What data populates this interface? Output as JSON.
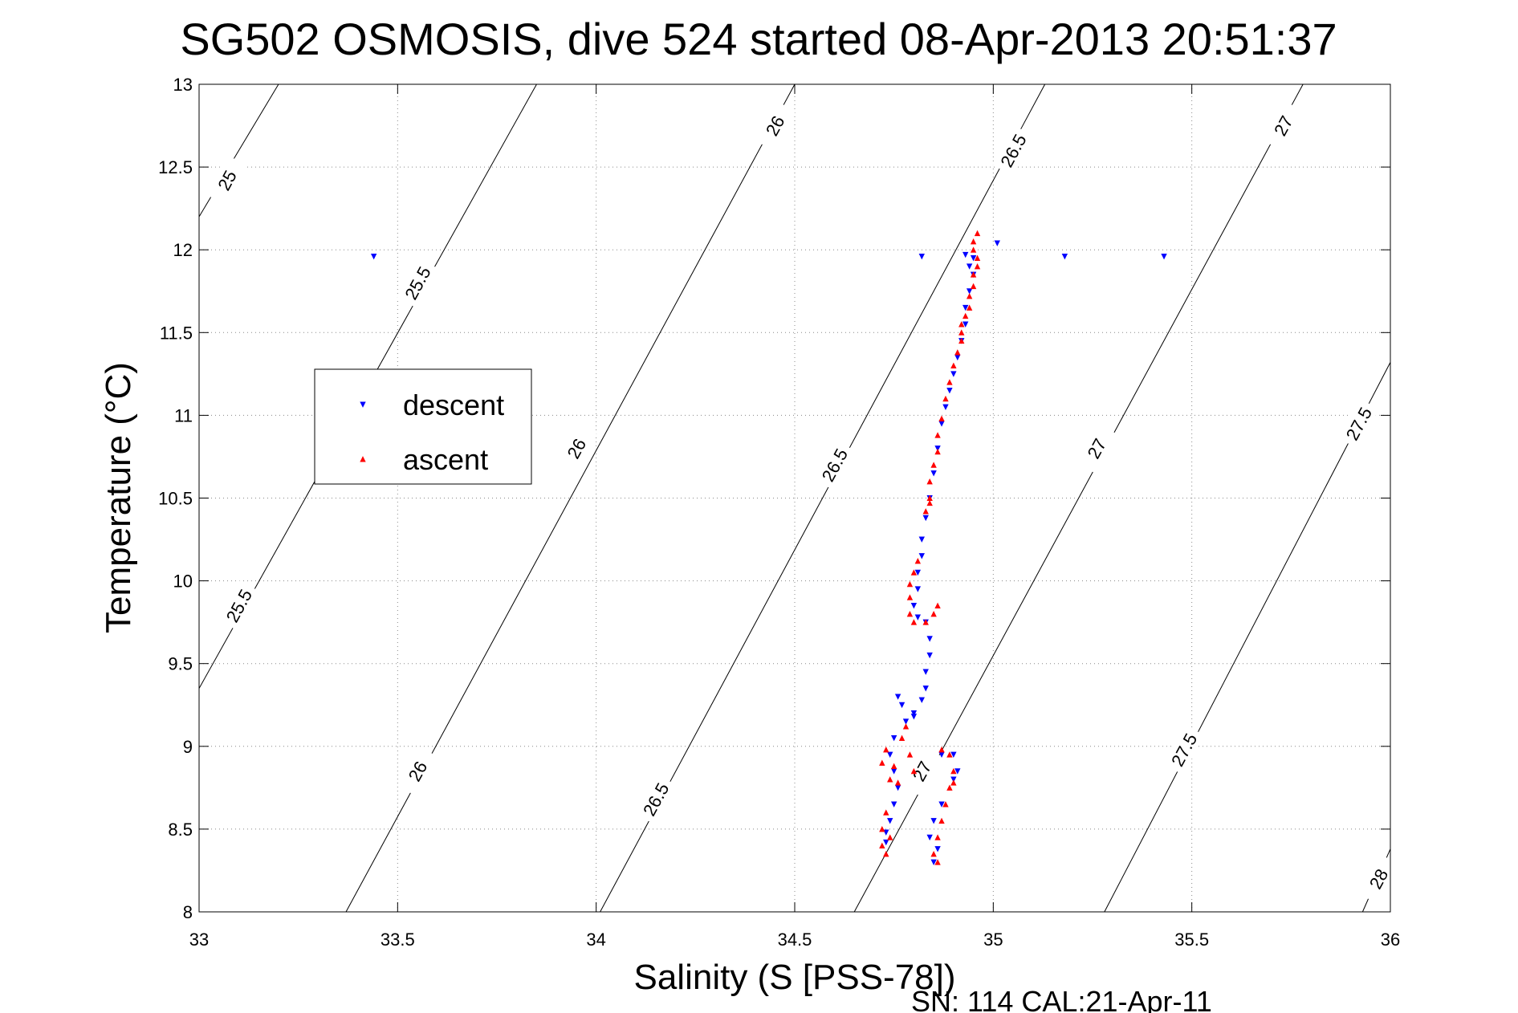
{
  "chart_data": {
    "type": "scatter",
    "title": "SG502 OSMOSIS, dive 524 started 08-Apr-2013 20:51:37",
    "xlabel": "Salinity (S [PSS-78])",
    "ylabel": "Temperature (°C)",
    "footer": "SN: 114  CAL:21-Apr-11",
    "xlim": [
      33,
      36
    ],
    "ylim": [
      8,
      13
    ],
    "xticks": [
      33,
      33.5,
      34,
      34.5,
      35,
      35.5,
      36
    ],
    "yticks": [
      8,
      8.5,
      9,
      9.5,
      10,
      10.5,
      11,
      11.5,
      12,
      12.5,
      13
    ],
    "grid": true,
    "legend_position": "left",
    "colors": {
      "descent": "#0000ff",
      "ascent": "#ff0000",
      "contour": "#000000"
    },
    "series": [
      {
        "name": "descent",
        "marker": "triangle-down",
        "color": "#0000ff",
        "points": [
          [
            33.44,
            11.96
          ],
          [
            34.82,
            11.96
          ],
          [
            35.01,
            12.04
          ],
          [
            35.18,
            11.96
          ],
          [
            35.43,
            11.96
          ],
          [
            34.93,
            11.97
          ],
          [
            34.95,
            11.95
          ],
          [
            34.94,
            11.9
          ],
          [
            34.95,
            11.85
          ],
          [
            34.94,
            11.75
          ],
          [
            34.93,
            11.65
          ],
          [
            34.93,
            11.55
          ],
          [
            34.92,
            11.45
          ],
          [
            34.91,
            11.35
          ],
          [
            34.9,
            11.25
          ],
          [
            34.89,
            11.15
          ],
          [
            34.88,
            11.05
          ],
          [
            34.87,
            10.95
          ],
          [
            34.86,
            10.8
          ],
          [
            34.85,
            10.65
          ],
          [
            34.84,
            10.5
          ],
          [
            34.83,
            10.38
          ],
          [
            34.82,
            10.25
          ],
          [
            34.82,
            10.15
          ],
          [
            34.81,
            10.05
          ],
          [
            34.81,
            9.95
          ],
          [
            34.8,
            9.85
          ],
          [
            34.81,
            9.78
          ],
          [
            34.83,
            9.75
          ],
          [
            34.84,
            9.65
          ],
          [
            34.84,
            9.55
          ],
          [
            34.83,
            9.45
          ],
          [
            34.83,
            9.35
          ],
          [
            34.82,
            9.28
          ],
          [
            34.8,
            9.2
          ],
          [
            34.77,
            9.25
          ],
          [
            34.76,
            9.3
          ],
          [
            34.8,
            9.18
          ],
          [
            34.78,
            9.15
          ],
          [
            34.75,
            9.05
          ],
          [
            34.74,
            8.95
          ],
          [
            34.75,
            8.85
          ],
          [
            34.76,
            8.75
          ],
          [
            34.75,
            8.65
          ],
          [
            34.74,
            8.55
          ],
          [
            34.73,
            8.48
          ],
          [
            34.73,
            8.42
          ],
          [
            34.84,
            8.45
          ],
          [
            34.85,
            8.55
          ],
          [
            34.86,
            8.38
          ],
          [
            34.85,
            8.3
          ],
          [
            34.87,
            8.65
          ],
          [
            34.87,
            8.95
          ],
          [
            34.9,
            8.95
          ],
          [
            34.91,
            8.85
          ],
          [
            34.9,
            8.8
          ]
        ]
      },
      {
        "name": "ascent",
        "marker": "triangle-up",
        "color": "#ff0000",
        "points": [
          [
            34.96,
            12.1
          ],
          [
            34.95,
            12.05
          ],
          [
            34.95,
            12.0
          ],
          [
            34.96,
            11.95
          ],
          [
            34.96,
            11.9
          ],
          [
            34.95,
            11.85
          ],
          [
            34.95,
            11.78
          ],
          [
            34.94,
            11.72
          ],
          [
            34.94,
            11.65
          ],
          [
            34.93,
            11.6
          ],
          [
            34.92,
            11.55
          ],
          [
            34.92,
            11.5
          ],
          [
            34.92,
            11.45
          ],
          [
            34.91,
            11.38
          ],
          [
            34.9,
            11.3
          ],
          [
            34.89,
            11.2
          ],
          [
            34.88,
            11.1
          ],
          [
            34.87,
            10.98
          ],
          [
            34.86,
            10.88
          ],
          [
            34.86,
            10.78
          ],
          [
            34.85,
            10.7
          ],
          [
            34.84,
            10.6
          ],
          [
            34.84,
            10.5
          ],
          [
            34.83,
            10.42
          ],
          [
            34.84,
            10.47
          ],
          [
            34.81,
            10.12
          ],
          [
            34.8,
            10.05
          ],
          [
            34.79,
            9.98
          ],
          [
            34.79,
            9.9
          ],
          [
            34.79,
            9.8
          ],
          [
            34.8,
            9.75
          ],
          [
            34.83,
            9.75
          ],
          [
            34.86,
            9.85
          ],
          [
            34.85,
            9.8
          ],
          [
            34.73,
            8.98
          ],
          [
            34.72,
            8.9
          ],
          [
            34.74,
            8.8
          ],
          [
            34.75,
            8.88
          ],
          [
            34.77,
            9.05
          ],
          [
            34.78,
            9.12
          ],
          [
            34.79,
            8.95
          ],
          [
            34.8,
            8.85
          ],
          [
            34.76,
            8.78
          ],
          [
            34.73,
            8.6
          ],
          [
            34.72,
            8.5
          ],
          [
            34.72,
            8.4
          ],
          [
            34.73,
            8.35
          ],
          [
            34.74,
            8.45
          ],
          [
            34.87,
            8.98
          ],
          [
            34.89,
            8.95
          ],
          [
            34.9,
            8.85
          ],
          [
            34.89,
            8.75
          ],
          [
            34.88,
            8.65
          ],
          [
            34.87,
            8.55
          ],
          [
            34.86,
            8.45
          ],
          [
            34.85,
            8.35
          ],
          [
            34.86,
            8.3
          ],
          [
            34.9,
            8.78
          ]
        ]
      }
    ],
    "contours": [
      {
        "level": 25,
        "points": [
          [
            33,
            12.2
          ],
          [
            33.2,
            13.0
          ]
        ]
      },
      {
        "level": 25.5,
        "points": [
          [
            33,
            9.35
          ],
          [
            33.85,
            13.0
          ]
        ]
      },
      {
        "level": 26,
        "points": [
          [
            33.37,
            8.0
          ],
          [
            34.5,
            13.0
          ]
        ]
      },
      {
        "level": 26.5,
        "points": [
          [
            34.01,
            8.0
          ],
          [
            35.13,
            13.0
          ]
        ]
      },
      {
        "level": 27,
        "points": [
          [
            34.65,
            8.0
          ],
          [
            35.78,
            13.0
          ]
        ]
      },
      {
        "level": 27.5,
        "points": [
          [
            35.28,
            8.0
          ],
          [
            36.0,
            11.32
          ]
        ]
      },
      {
        "level": 28,
        "points": [
          [
            35.93,
            8.0
          ],
          [
            36.0,
            8.38
          ]
        ]
      }
    ],
    "contour_labels": [
      {
        "text": "25",
        "at": [
          33.07,
          12.42
        ]
      },
      {
        "text": "25.5",
        "at": [
          33.55,
          11.8
        ]
      },
      {
        "text": "25.5",
        "at": [
          33.1,
          9.85
        ]
      },
      {
        "text": "26",
        "at": [
          34.45,
          12.75
        ]
      },
      {
        "text": "26",
        "at": [
          33.95,
          10.8
        ]
      },
      {
        "text": "26",
        "at": [
          33.55,
          8.85
        ]
      },
      {
        "text": "26.5",
        "at": [
          35.05,
          12.6
        ]
      },
      {
        "text": "26.5",
        "at": [
          34.6,
          10.7
        ]
      },
      {
        "text": "26.5",
        "at": [
          34.15,
          8.68
        ]
      },
      {
        "text": "27",
        "at": [
          35.73,
          12.75
        ]
      },
      {
        "text": "27",
        "at": [
          35.26,
          10.8
        ]
      },
      {
        "text": "27",
        "at": [
          34.82,
          8.85
        ]
      },
      {
        "text": "27.5",
        "at": [
          35.92,
          10.95
        ]
      },
      {
        "text": "27.5",
        "at": [
          35.48,
          8.98
        ]
      },
      {
        "text": "28",
        "at": [
          35.97,
          8.2
        ]
      }
    ]
  }
}
